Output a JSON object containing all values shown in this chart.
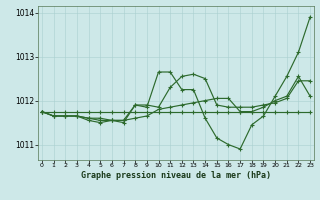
{
  "xlabel": "Graphe pression niveau de la mer (hPa)",
  "background_color": "#cde8e8",
  "line_color": "#2d6a2d",
  "ylim": [
    1010.65,
    1014.15
  ],
  "xlim": [
    -0.3,
    23.3
  ],
  "yticks": [
    1011,
    1012,
    1013,
    1014
  ],
  "xticks": [
    0,
    1,
    2,
    3,
    4,
    5,
    6,
    7,
    8,
    9,
    10,
    11,
    12,
    13,
    14,
    15,
    16,
    17,
    18,
    19,
    20,
    21,
    22,
    23
  ],
  "series": [
    [
      1011.75,
      1011.65,
      1011.65,
      1011.65,
      1011.55,
      1011.5,
      1011.55,
      1011.5,
      1011.9,
      1011.85,
      1012.65,
      1012.65,
      1012.25,
      1012.25,
      1011.6,
      1011.15,
      1011.0,
      1010.9,
      1011.45,
      1011.65,
      1012.1,
      1012.55,
      1013.1,
      1013.9
    ],
    [
      1011.75,
      1011.65,
      1011.65,
      1011.65,
      1011.6,
      1011.6,
      1011.55,
      1011.55,
      1011.6,
      1011.65,
      1011.8,
      1011.85,
      1011.9,
      1011.95,
      1012.0,
      1012.05,
      1012.05,
      1011.75,
      1011.75,
      1011.85,
      1012.0,
      1012.1,
      1012.55,
      1012.1
    ],
    [
      1011.75,
      1011.75,
      1011.75,
      1011.75,
      1011.75,
      1011.75,
      1011.75,
      1011.75,
      1011.75,
      1011.75,
      1011.75,
      1011.75,
      1011.75,
      1011.75,
      1011.75,
      1011.75,
      1011.75,
      1011.75,
      1011.75,
      1011.75,
      1011.75,
      1011.75,
      1011.75,
      1011.75
    ],
    [
      1011.75,
      1011.65,
      1011.65,
      1011.65,
      1011.6,
      1011.55,
      1011.55,
      1011.55,
      1011.9,
      1011.9,
      1011.85,
      1012.3,
      1012.55,
      1012.6,
      1012.5,
      1011.9,
      1011.85,
      1011.85,
      1011.85,
      1011.9,
      1011.95,
      1012.05,
      1012.45,
      1012.45
    ]
  ]
}
